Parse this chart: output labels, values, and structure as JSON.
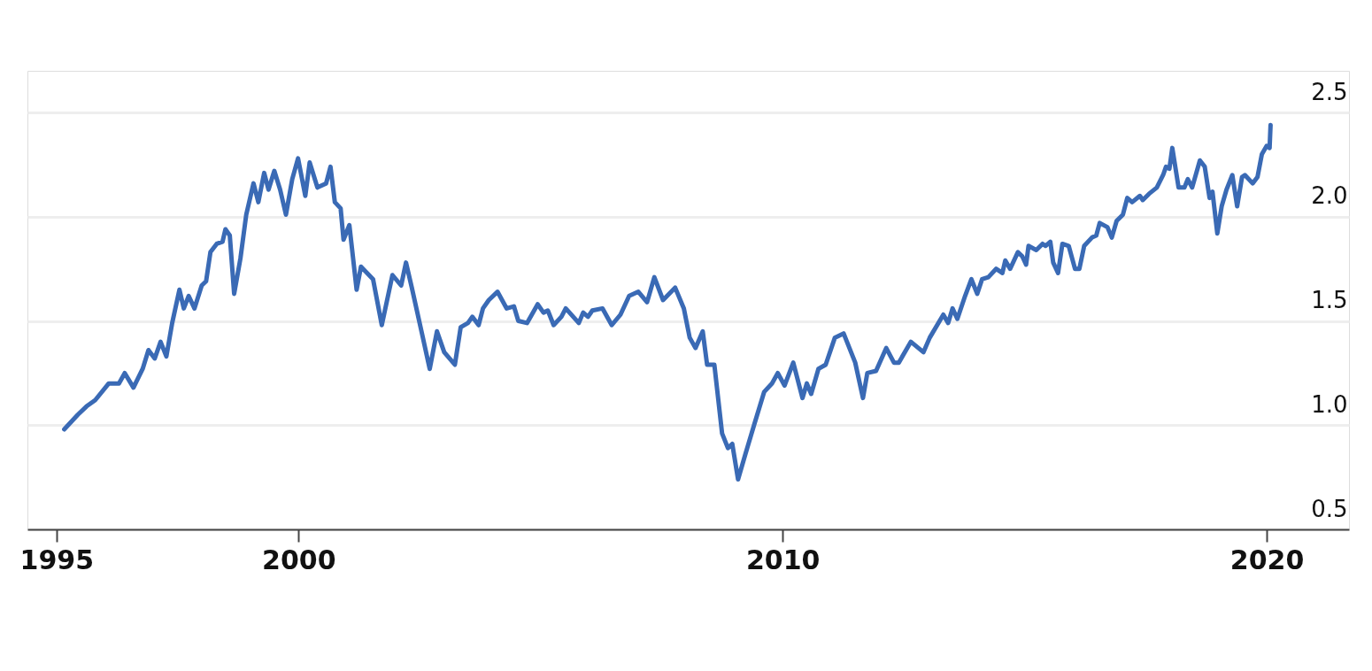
{
  "chart_data": {
    "type": "line",
    "xlim": [
      1994.4,
      2021.7
    ],
    "xticks": [
      1995,
      2000,
      2010,
      2020
    ],
    "ylim": [
      0.5,
      2.7
    ],
    "yticks": [
      {
        "value": 0.5,
        "label": "0.5"
      },
      {
        "value": 1,
        "label": "1.0"
      },
      {
        "value": 1.5,
        "label": "1.5"
      },
      {
        "value": 2,
        "label": "2.0"
      },
      {
        "value": 2.5,
        "label": "2.5"
      }
    ],
    "grid": "y",
    "series": [
      {
        "color": "#3a6ab5",
        "line_style": "solid",
        "x": [
          1995.16,
          1995.44,
          1995.62,
          1995.8,
          1996.08,
          1996.29,
          1996.41,
          1996.59,
          1996.78,
          1996.9,
          1997.03,
          1997.15,
          1997.27,
          1997.39,
          1997.54,
          1997.63,
          1997.73,
          1997.85,
          1998.0,
          1998.09,
          1998.18,
          1998.31,
          1998.43,
          1998.49,
          1998.58,
          1998.67,
          1998.8,
          1998.92,
          1999.07,
          1999.17,
          1999.29,
          1999.38,
          1999.5,
          1999.62,
          1999.74,
          1999.87,
          1999.99,
          2000.14,
          2000.23,
          2000.39,
          2000.57,
          2000.66,
          2000.75,
          2000.87,
          2000.93,
          2001.05,
          2001.2,
          2001.29,
          2001.54,
          2001.72,
          2001.94,
          2002.12,
          2002.22,
          2002.34,
          2002.55,
          2002.71,
          2002.86,
          2003.01,
          2003.23,
          2003.35,
          2003.5,
          2003.59,
          2003.72,
          2003.81,
          2003.93,
          2004.11,
          2004.3,
          2004.45,
          2004.54,
          2004.72,
          2004.94,
          2005.06,
          2005.15,
          2005.27,
          2005.43,
          2005.52,
          2005.79,
          2005.88,
          2005.98,
          2006.07,
          2006.28,
          2006.47,
          2006.65,
          2006.83,
          2007.02,
          2007.2,
          2007.35,
          2007.53,
          2007.78,
          2007.96,
          2008.08,
          2008.2,
          2008.35,
          2008.44,
          2008.59,
          2008.75,
          2008.87,
          2008.96,
          2009.08,
          2009.23,
          2009.41,
          2009.62,
          2009.78,
          2009.9,
          2010.04,
          2010.22,
          2010.41,
          2010.5,
          2010.59,
          2010.74,
          2010.89,
          2011.08,
          2011.26,
          2011.5,
          2011.66,
          2011.75,
          2011.93,
          2012.14,
          2012.3,
          2012.4,
          2012.65,
          2012.91,
          2013.04,
          2013.32,
          2013.42,
          2013.51,
          2013.61,
          2013.77,
          2013.9,
          2014.02,
          2014.12,
          2014.25,
          2014.41,
          2014.54,
          2014.6,
          2014.7,
          2014.86,
          2014.95,
          2015.03,
          2015.08,
          2015.24,
          2015.37,
          2015.43,
          2015.53,
          2015.59,
          2015.69,
          2015.78,
          2015.91,
          2016.04,
          2016.13,
          2016.23,
          2016.39,
          2016.48,
          2016.55,
          2016.71,
          2016.8,
          2016.9,
          2017.03,
          2017.12,
          2017.22,
          2017.38,
          2017.44,
          2017.57,
          2017.73,
          2017.86,
          2017.92,
          2017.99,
          2018.05,
          2018.18,
          2018.3,
          2018.37,
          2018.46,
          2018.62,
          2018.72,
          2018.82,
          2018.88,
          2018.98,
          2019.07,
          2019.17,
          2019.29,
          2019.39,
          2019.49,
          2019.55,
          2019.71,
          2019.81,
          2019.9,
          2020.0,
          2020.06,
          2020.08
        ],
        "values": [
          0.98,
          1.05,
          1.09,
          1.12,
          1.2,
          1.2,
          1.25,
          1.18,
          1.27,
          1.36,
          1.32,
          1.4,
          1.33,
          1.49,
          1.65,
          1.56,
          1.62,
          1.56,
          1.67,
          1.69,
          1.83,
          1.87,
          1.88,
          1.94,
          1.91,
          1.63,
          1.8,
          2.01,
          2.16,
          2.07,
          2.21,
          2.13,
          2.22,
          2.13,
          2.01,
          2.18,
          2.28,
          2.1,
          2.26,
          2.14,
          2.16,
          2.24,
          2.07,
          2.04,
          1.89,
          1.96,
          1.65,
          1.76,
          1.7,
          1.48,
          1.72,
          1.67,
          1.78,
          1.66,
          1.44,
          1.27,
          1.45,
          1.35,
          1.29,
          1.47,
          1.49,
          1.52,
          1.48,
          1.56,
          1.6,
          1.64,
          1.56,
          1.57,
          1.5,
          1.49,
          1.58,
          1.54,
          1.55,
          1.48,
          1.52,
          1.56,
          1.49,
          1.54,
          1.52,
          1.55,
          1.56,
          1.48,
          1.53,
          1.62,
          1.64,
          1.59,
          1.71,
          1.6,
          1.66,
          1.56,
          1.42,
          1.37,
          1.45,
          1.29,
          1.29,
          0.96,
          0.89,
          0.91,
          0.74,
          0.86,
          1.0,
          1.16,
          1.2,
          1.25,
          1.19,
          1.3,
          1.13,
          1.2,
          1.15,
          1.27,
          1.29,
          1.42,
          1.44,
          1.3,
          1.13,
          1.25,
          1.26,
          1.37,
          1.3,
          1.3,
          1.4,
          1.35,
          1.42,
          1.53,
          1.49,
          1.56,
          1.51,
          1.62,
          1.7,
          1.63,
          1.7,
          1.71,
          1.75,
          1.73,
          1.79,
          1.75,
          1.83,
          1.81,
          1.77,
          1.86,
          1.84,
          1.87,
          1.86,
          1.88,
          1.78,
          1.73,
          1.87,
          1.86,
          1.75,
          1.75,
          1.86,
          1.9,
          1.91,
          1.97,
          1.95,
          1.9,
          1.98,
          2.01,
          2.09,
          2.07,
          2.1,
          2.08,
          2.11,
          2.14,
          2.2,
          2.24,
          2.23,
          2.33,
          2.14,
          2.14,
          2.18,
          2.14,
          2.27,
          2.24,
          2.09,
          2.12,
          1.92,
          2.05,
          2.13,
          2.2,
          2.05,
          2.19,
          2.2,
          2.16,
          2.19,
          2.3,
          2.34,
          2.33,
          2.44
        ]
      }
    ]
  }
}
